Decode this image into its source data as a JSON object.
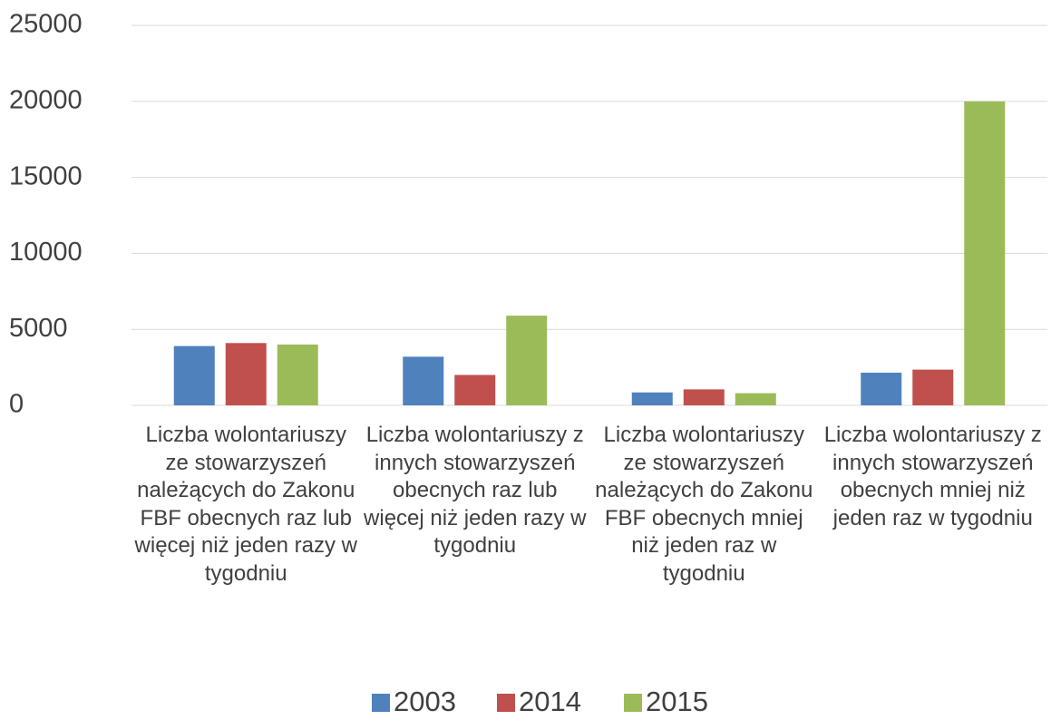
{
  "chart_data": {
    "type": "bar",
    "categories": [
      "Liczba wolontariuszy ze stowarzyszeń należących do Zakonu FBF obecnych raz lub więcej niż jeden razy w tygodniu",
      "Liczba wolontariuszy z innych stowarzyszeń obecnych raz lub więcej niż jeden razy w tygodniu",
      "Liczba wolontariuszy ze stowarzyszeń należących do Zakonu FBF obecnych mniej niż jeden raz w tygodniu",
      "Liczba wolontariuszy z innych stowarzyszeń obecnych mniej niż jeden raz w tygodniu"
    ],
    "series": [
      {
        "name": "2003",
        "color": "#4f81bd",
        "values": [
          3900,
          3200,
          850,
          2150
        ]
      },
      {
        "name": "2014",
        "color": "#c0504d",
        "values": [
          4100,
          2000,
          1050,
          2350
        ]
      },
      {
        "name": "2015",
        "color": "#9bbb59",
        "values": [
          4000,
          5900,
          800,
          20000
        ]
      }
    ],
    "ylim": [
      0,
      25000
    ],
    "yticks": [
      0,
      5000,
      10000,
      15000,
      20000,
      25000
    ],
    "grid": true,
    "legend": "bottom"
  }
}
